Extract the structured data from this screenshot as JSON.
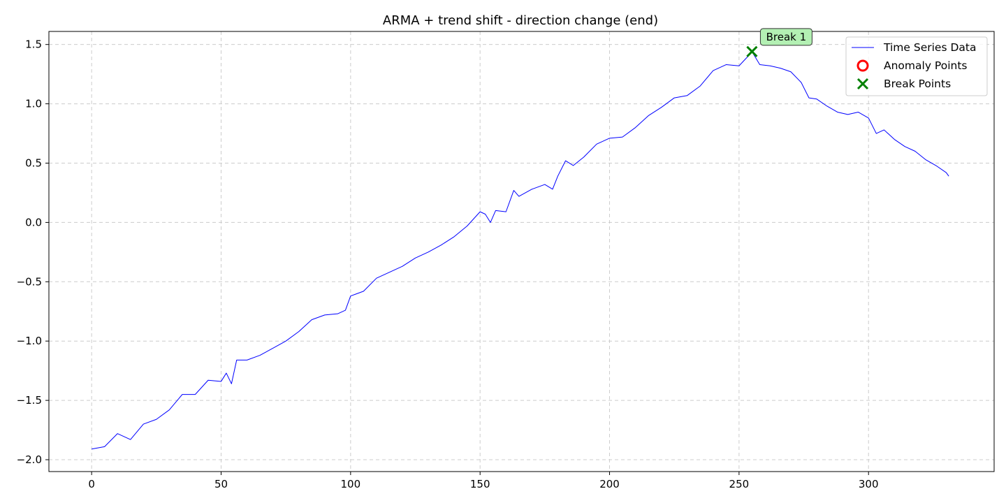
{
  "chart_data": {
    "type": "line",
    "title": "ARMA + trend shift - direction change (end)",
    "xlabel": "",
    "ylabel": "",
    "xlim": [
      -16.5,
      348.5
    ],
    "ylim": [
      -2.1,
      1.61
    ],
    "grid": true,
    "legend_position": "top-right",
    "x_ticks": [
      0,
      50,
      100,
      150,
      200,
      250,
      300
    ],
    "y_ticks": [
      1.5,
      1.0,
      0.5,
      0.0,
      -0.5,
      -1.0,
      -1.5,
      -2.0
    ],
    "x_tick_labels": [
      "0",
      "50",
      "100",
      "150",
      "200",
      "250",
      "300"
    ],
    "y_tick_labels": [
      "1.5",
      "1.0",
      "0.5",
      "0.0",
      "−0.5",
      "−1.0",
      "−1.5",
      "−2.0"
    ],
    "series": [
      {
        "name": "Time Series Data",
        "color": "#0000ff",
        "points": [
          [
            0,
            -1.91
          ],
          [
            5,
            -1.89
          ],
          [
            10,
            -1.78
          ],
          [
            15,
            -1.83
          ],
          [
            20,
            -1.7
          ],
          [
            25,
            -1.66
          ],
          [
            30,
            -1.58
          ],
          [
            35,
            -1.45
          ],
          [
            40,
            -1.45
          ],
          [
            45,
            -1.33
          ],
          [
            50,
            -1.34
          ],
          [
            52,
            -1.27
          ],
          [
            54,
            -1.36
          ],
          [
            56,
            -1.16
          ],
          [
            60,
            -1.16
          ],
          [
            65,
            -1.12
          ],
          [
            70,
            -1.06
          ],
          [
            75,
            -1.0
          ],
          [
            80,
            -0.92
          ],
          [
            85,
            -0.82
          ],
          [
            90,
            -0.78
          ],
          [
            95,
            -0.77
          ],
          [
            98,
            -0.74
          ],
          [
            100,
            -0.62
          ],
          [
            105,
            -0.58
          ],
          [
            110,
            -0.47
          ],
          [
            115,
            -0.42
          ],
          [
            120,
            -0.37
          ],
          [
            125,
            -0.3
          ],
          [
            130,
            -0.25
          ],
          [
            135,
            -0.19
          ],
          [
            140,
            -0.12
          ],
          [
            145,
            -0.03
          ],
          [
            150,
            0.09
          ],
          [
            152,
            0.07
          ],
          [
            154,
            0.0
          ],
          [
            156,
            0.1
          ],
          [
            160,
            0.09
          ],
          [
            163,
            0.27
          ],
          [
            165,
            0.22
          ],
          [
            170,
            0.28
          ],
          [
            175,
            0.32
          ],
          [
            178,
            0.28
          ],
          [
            180,
            0.39
          ],
          [
            183,
            0.52
          ],
          [
            186,
            0.48
          ],
          [
            190,
            0.55
          ],
          [
            195,
            0.66
          ],
          [
            200,
            0.71
          ],
          [
            205,
            0.72
          ],
          [
            210,
            0.8
          ],
          [
            215,
            0.9
          ],
          [
            220,
            0.97
          ],
          [
            225,
            1.05
          ],
          [
            230,
            1.07
          ],
          [
            235,
            1.15
          ],
          [
            240,
            1.28
          ],
          [
            245,
            1.33
          ],
          [
            250,
            1.32
          ],
          [
            253,
            1.39
          ],
          [
            255,
            1.44
          ],
          [
            258,
            1.33
          ],
          [
            262,
            1.32
          ],
          [
            266,
            1.3
          ],
          [
            270,
            1.27
          ],
          [
            274,
            1.18
          ],
          [
            277,
            1.05
          ],
          [
            280,
            1.04
          ],
          [
            284,
            0.98
          ],
          [
            288,
            0.93
          ],
          [
            292,
            0.91
          ],
          [
            296,
            0.93
          ],
          [
            300,
            0.88
          ],
          [
            303,
            0.75
          ],
          [
            306,
            0.78
          ],
          [
            310,
            0.7
          ],
          [
            314,
            0.64
          ],
          [
            318,
            0.6
          ],
          [
            322,
            0.53
          ],
          [
            326,
            0.48
          ],
          [
            330,
            0.42
          ],
          [
            331,
            0.39
          ]
        ]
      }
    ],
    "anomaly_points": [],
    "break_points": [
      {
        "x": 255,
        "y": 1.44,
        "label": "Break 1"
      }
    ],
    "legend": [
      {
        "label": "Time Series Data",
        "kind": "line",
        "color": "#0000ff"
      },
      {
        "label": "Anomaly Points",
        "kind": "circle",
        "color": "#ff0000"
      },
      {
        "label": "Break Points",
        "kind": "x",
        "color": "#008000"
      }
    ],
    "colors": {
      "line": "#0000ff",
      "break": "#008000",
      "anomaly": "#ff0000",
      "annotation_bg": "#b3f0b3"
    }
  }
}
